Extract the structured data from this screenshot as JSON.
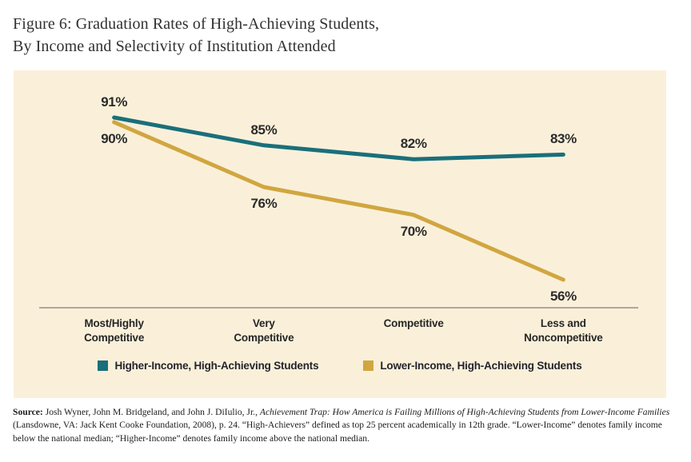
{
  "title": {
    "line1": "Figure 6: Graduation Rates of High-Achieving Students,",
    "line2": "By Income and Selectivity of Institution Attended"
  },
  "chart_data": {
    "type": "line",
    "title": "Graduation Rates of High-Achieving Students, By Income and Selectivity of Institution Attended",
    "categories": [
      "Most/Highly\nCompetitive",
      "Very\nCompetitive",
      "Competitive",
      "Less and\nNoncompetitive"
    ],
    "series": [
      {
        "name": "Higher-Income, High-Achieving Students",
        "color": "#1a6f7a",
        "values": [
          91,
          85,
          82,
          83
        ],
        "data_label_position": "above"
      },
      {
        "name": "Lower-Income, High-Achieving Students",
        "color": "#d1a640",
        "values": [
          90,
          76,
          70,
          56
        ],
        "data_label_position": "below"
      }
    ],
    "value_suffix": "%",
    "ylim": [
      50,
      95
    ],
    "grid": false,
    "legend_position": "bottom",
    "axis_line_color": "#90908a",
    "panel_background": "#faf0da",
    "data_label_color": "#2b2b2b"
  },
  "source": {
    "label": "Source:",
    "segments": [
      {
        "style": "normal",
        "text": " Josh Wyner, John M. Bridgeland, and John J. DiIulio, Jr., "
      },
      {
        "style": "italic",
        "text": "Achievement Trap: How America is Failing Millions of High-Achieving Students from Lower-Income Families"
      },
      {
        "style": "normal",
        "text": " (Lansdowne, VA: Jack Kent Cooke Foundation, 2008), p. 24. “High-Achievers” defined as top 25 percent academically in 12th grade. “Lower-Income” denotes family income below the national median; “Higher-Income” denotes family income above the national median."
      }
    ]
  }
}
